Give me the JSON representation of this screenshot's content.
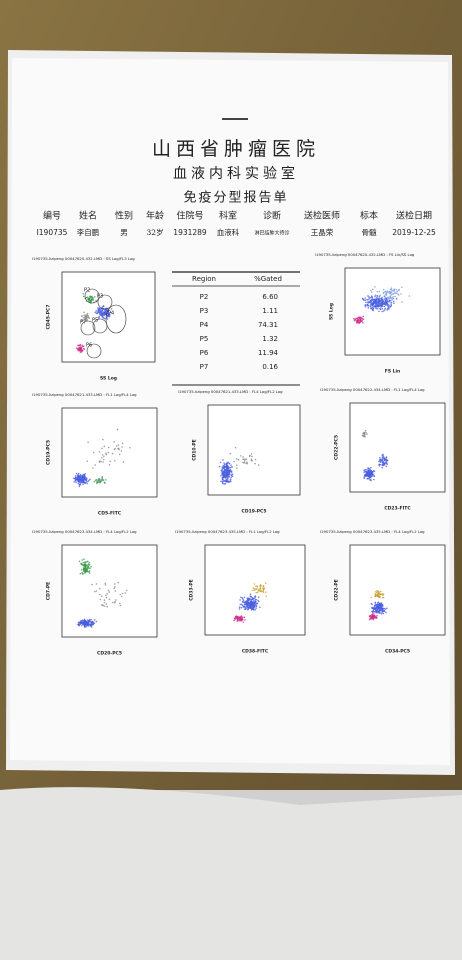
{
  "header": {
    "hospital": "山西省肿瘤医院",
    "lab": "血液内科实验室",
    "report": "免疫分型报告单"
  },
  "patient": {
    "labels": [
      "编号",
      "姓名",
      "性别",
      "年龄",
      "住院号",
      "科室",
      "诊断",
      "送检医师",
      "标本",
      "送检日期"
    ],
    "values": [
      "I190735",
      "李自鹏",
      "男",
      "32岁",
      "1931289",
      "血液科",
      "淋巴结肿大待诊",
      "王晶荣",
      "骨髓",
      "2019-12-25"
    ]
  },
  "gate_table": {
    "columns": [
      "Region",
      "%Gated"
    ],
    "rows": [
      [
        "P2",
        "6.60"
      ],
      [
        "P3",
        "1.11"
      ],
      [
        "P4",
        "74.31"
      ],
      [
        "P5",
        "1.32"
      ],
      [
        "P6",
        "11.94"
      ],
      [
        "P7",
        "0.16"
      ]
    ]
  },
  "gates": [
    "P2",
    "P3",
    "P7",
    "P5",
    "P4",
    "P6"
  ],
  "plots": [
    {
      "title": "I190735-lizipeng 00047620.432.LMD : SS Log/FL3 Log",
      "x_label": "SS Log",
      "y_label": "CD45-PC7"
    },
    {
      "title": "I190735-lizipeng 00047620.432.LMD : FS Lin/SS Log",
      "x_label": "FS Lin",
      "y_label": "SS Log"
    },
    {
      "title": "I190735-lizipeng 00047621.433.LMD : FL1 Log/FL4 Log",
      "x_label": "CD5-FITC",
      "y_label": "CD19-PC5"
    },
    {
      "title": "I190735-lizipeng 00047621.433.LMD : FL4 Log/FL2 Log",
      "x_label": "CD19-PC5",
      "y_label": "CD10-PE"
    },
    {
      "title": "I190735-lizipeng 00047622.434.LMD : FL1 Log/FL4 Log",
      "x_label": "CD23-FITC",
      "y_label": "CD22-PC5"
    },
    {
      "title": "I190735-lizipeng 00047623.434.LMD : FL4 Log/FL2 Log",
      "x_label": "CD20-PC5",
      "y_label": "CD7-PE"
    },
    {
      "title": "I190735-lizipeng 00047623.435.LMD : FL1 Log/FL2 Log",
      "x_label": "CD38-FITC",
      "y_label": "CD33-PE"
    },
    {
      "title": "I190735-lizipeng 00047623.435.LMD : FL4 Log/FL2 Log",
      "x_label": "CD34-PC5",
      "y_label": "CD22-PE"
    }
  ]
}
